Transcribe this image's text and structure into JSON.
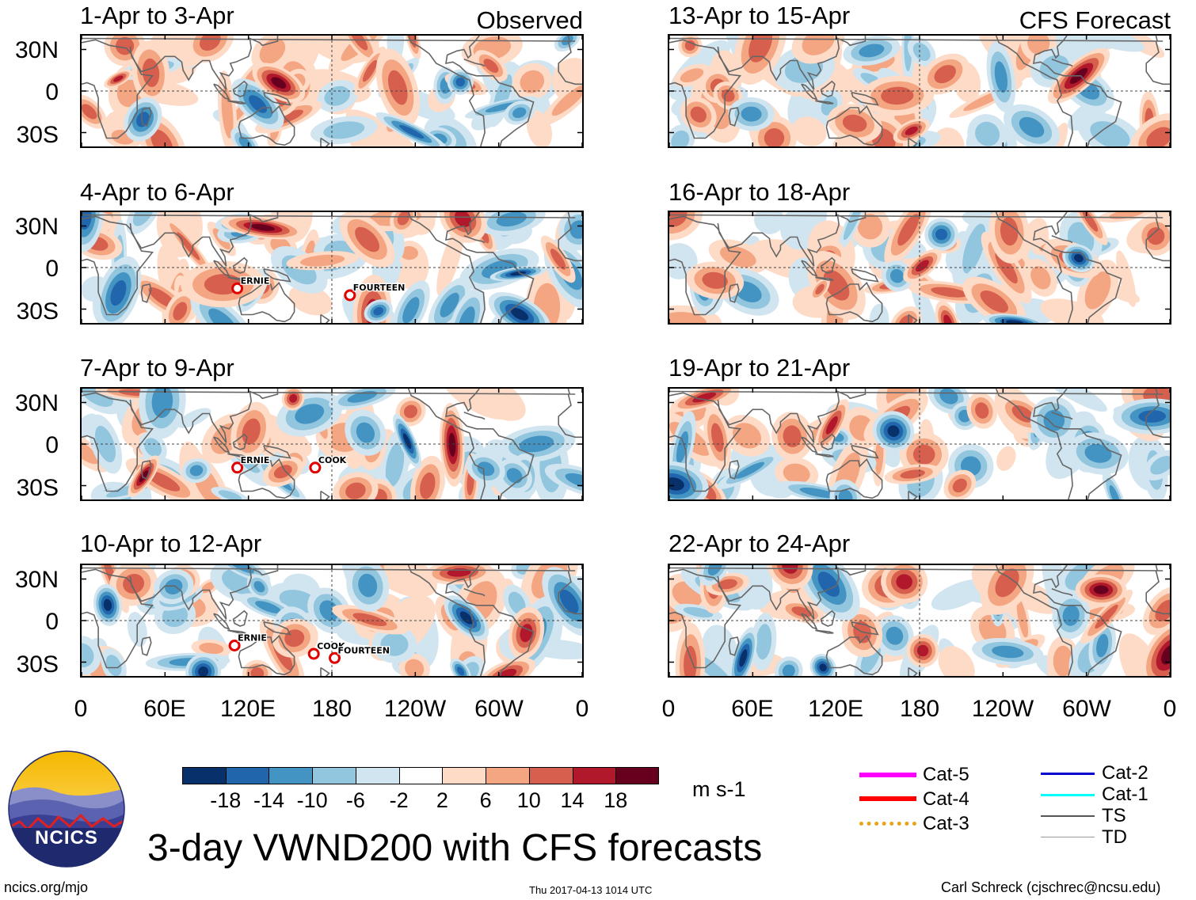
{
  "chart_data": {
    "type": "heatmap",
    "title": "3-day VWND200 with CFS forecasts",
    "units": "m s-1",
    "variable": "VWND200",
    "yticks": [
      "30N",
      "0",
      "30S"
    ],
    "xticks": [
      "0",
      "60E",
      "120E",
      "180",
      "120W",
      "60W",
      "0"
    ],
    "ylim": [
      -40,
      40
    ],
    "xlim": [
      0,
      360
    ],
    "columns": [
      {
        "label": "Observed",
        "panels": [
          {
            "period": "1-Apr to 3-Apr",
            "storms": []
          },
          {
            "period": "4-Apr to 6-Apr",
            "storms": [
              {
                "name": "ERNIE",
                "lon": 112,
                "lat": -15
              },
              {
                "name": "FOURTEEN",
                "lon": 193,
                "lat": -20
              }
            ]
          },
          {
            "period": "7-Apr to 9-Apr",
            "storms": [
              {
                "name": "ERNIE",
                "lon": 112,
                "lat": -17
              },
              {
                "name": "COOK",
                "lon": 168,
                "lat": -17
              }
            ]
          },
          {
            "period": "10-Apr to 12-Apr",
            "storms": [
              {
                "name": "ERNIE",
                "lon": 110,
                "lat": -18
              },
              {
                "name": "COOK",
                "lon": 167,
                "lat": -24
              },
              {
                "name": "FOURTEEN",
                "lon": 182,
                "lat": -27
              }
            ]
          }
        ]
      },
      {
        "label": "CFS Forecast",
        "panels": [
          {
            "period": "13-Apr to 15-Apr",
            "storms": []
          },
          {
            "period": "16-Apr to 18-Apr",
            "storms": []
          },
          {
            "period": "19-Apr to 21-Apr",
            "storms": []
          },
          {
            "period": "22-Apr to 24-Apr",
            "storms": []
          }
        ]
      }
    ],
    "colorbar": {
      "levels": [
        -22,
        -18,
        -14,
        -10,
        -6,
        -2,
        2,
        6,
        10,
        14,
        18,
        22
      ],
      "tick_labels": [
        "-18",
        "-14",
        "-10",
        "-6",
        "-2",
        "2",
        "6",
        "10",
        "14",
        "18"
      ],
      "colors": [
        "#08306b",
        "#2166ac",
        "#4393c3",
        "#92c5de",
        "#d1e5f0",
        "#ffffff",
        "#fddbc7",
        "#f4a582",
        "#d6604d",
        "#b2182b",
        "#67001f"
      ]
    }
  },
  "legend": {
    "items": [
      {
        "label": "Cat-5",
        "color": "#ff00ff"
      },
      {
        "label": "Cat-4",
        "color": "#ff0000"
      },
      {
        "label": "Cat-3",
        "color": "#e8a317"
      },
      {
        "label": "Cat-2",
        "color": "#0000cc"
      },
      {
        "label": "Cat-1",
        "color": "#00ffff"
      },
      {
        "label": "TS",
        "color": "#555555"
      },
      {
        "label": "TD",
        "color": "#999999"
      }
    ]
  },
  "logo": {
    "text": "NCICS"
  },
  "footer": {
    "left": "ncics.org/mjo",
    "center": "Thu 2017-04-13 1014 UTC",
    "right": "Carl Schreck (cjschrec@ncsu.edu)"
  }
}
